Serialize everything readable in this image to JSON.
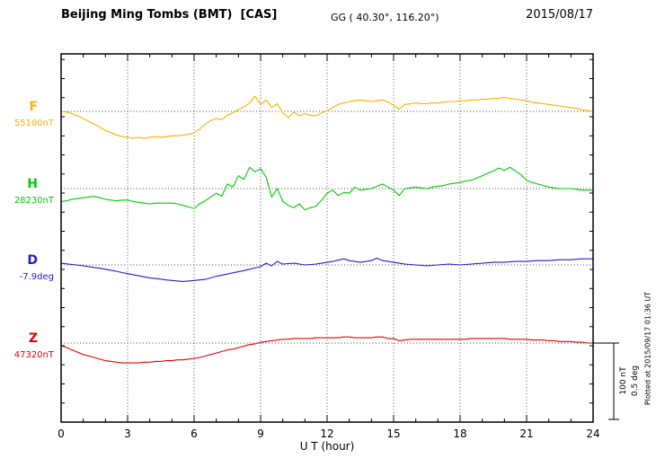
{
  "header": {
    "station_title": "Beijing Ming Tombs (BMT)  [CAS]",
    "coordinates": "GG ( 40.30°, 116.20°)",
    "date": "2015/08/17"
  },
  "footer": {
    "plotted_at": "Plotted at 2015/09/17 01:36 UT"
  },
  "scale_bar": {
    "nT_label": "100 nT",
    "deg_label": "0.5 deg"
  },
  "chart_data": {
    "type": "line",
    "title": "Beijing Ming Tombs (BMT) [CAS]",
    "xlabel": "U T (hour)",
    "x_range": [
      0,
      24
    ],
    "x_ticks": [
      0,
      3,
      6,
      9,
      12,
      15,
      18,
      21,
      24
    ],
    "grid": "dotted vertical lines every 3 hours; dotted horizontal baseline per trace",
    "scale": {
      "nT_per_division": 100,
      "deg_per_division": 0.5
    },
    "series": [
      {
        "name": "F",
        "unit": "nT",
        "baseline": 55100,
        "baseline_label": "55100nT",
        "color": "#FFB000",
        "x_step_hours": 0.25,
        "values": [
          0,
          -1,
          -3,
          -6,
          -9,
          -13,
          -17,
          -21,
          -25,
          -28,
          -31,
          -33,
          -34,
          -35,
          -34,
          -35,
          -34,
          -33,
          -34,
          -33,
          -32,
          -32,
          -31,
          -30,
          -28,
          -23,
          -17,
          -12,
          -9,
          -11,
          -5,
          -2,
          2,
          6,
          11,
          20,
          9,
          15,
          5,
          10,
          -2,
          -8,
          -1,
          -6,
          -3,
          -5,
          -6,
          -2,
          1,
          5,
          9,
          11,
          13,
          14,
          15,
          14,
          13,
          14,
          15,
          12,
          8,
          3,
          9,
          10,
          11,
          10,
          10,
          11,
          11,
          12,
          13,
          13,
          14,
          14,
          15,
          15,
          16,
          16,
          17,
          17,
          18,
          17,
          16,
          15,
          14,
          12,
          11,
          10,
          9,
          8,
          7,
          6,
          5,
          4,
          2,
          1,
          0
        ]
      },
      {
        "name": "H",
        "unit": "nT",
        "baseline": 28230,
        "baseline_label": "28230nT",
        "color": "#00CC00",
        "x_step_hours": 0.25,
        "values": [
          -17,
          -16,
          -14,
          -13,
          -12,
          -11,
          -10,
          -12,
          -14,
          -15,
          -16,
          -15,
          -15,
          -17,
          -18,
          -19,
          -20,
          -19,
          -19,
          -19,
          -19,
          -20,
          -22,
          -24,
          -26,
          -20,
          -16,
          -11,
          -6,
          -10,
          6,
          2,
          17,
          12,
          28,
          22,
          26,
          15,
          -11,
          0,
          -17,
          -22,
          -25,
          -20,
          -28,
          -25,
          -23,
          -15,
          -6,
          -2,
          -9,
          -5,
          -6,
          2,
          -2,
          -1,
          0,
          3,
          6,
          2,
          -2,
          -9,
          0,
          1,
          2,
          1,
          0,
          2,
          3,
          4,
          6,
          7,
          8,
          10,
          11,
          14,
          17,
          20,
          23,
          27,
          24,
          28,
          23,
          18,
          11,
          8,
          6,
          4,
          2,
          1,
          0,
          0,
          0,
          -1,
          -2,
          -2,
          -2
        ]
      },
      {
        "name": "D",
        "unit": "deg",
        "baseline": -7.9,
        "baseline_label": "-7.9deg",
        "color": "#2020D0",
        "x_step_hours": 0.25,
        "values": [
          0.011,
          0.007,
          0.003,
          -0.001,
          -0.006,
          -0.011,
          -0.017,
          -0.022,
          -0.028,
          -0.035,
          -0.042,
          -0.05,
          -0.057,
          -0.064,
          -0.071,
          -0.078,
          -0.085,
          -0.089,
          -0.093,
          -0.098,
          -0.102,
          -0.105,
          -0.108,
          -0.105,
          -0.102,
          -0.098,
          -0.095,
          -0.085,
          -0.074,
          -0.067,
          -0.06,
          -0.052,
          -0.045,
          -0.037,
          -0.028,
          -0.02,
          -0.011,
          0.011,
          -0.006,
          0.023,
          0.006,
          0.009,
          0.011,
          0.006,
          0.0,
          0.003,
          0.006,
          0.011,
          0.017,
          0.023,
          0.031,
          0.04,
          0.028,
          0.023,
          0.017,
          0.023,
          0.028,
          0.045,
          0.028,
          0.023,
          0.017,
          0.011,
          0.006,
          0.003,
          0.0,
          -0.003,
          -0.006,
          -0.003,
          0.0,
          0.003,
          0.006,
          0.003,
          0.0,
          0.003,
          0.006,
          0.009,
          0.011,
          0.014,
          0.017,
          0.017,
          0.017,
          0.02,
          0.023,
          0.023,
          0.023,
          0.026,
          0.028,
          0.028,
          0.028,
          0.031,
          0.034,
          0.034,
          0.034,
          0.037,
          0.04,
          0.04,
          0.04
        ]
      },
      {
        "name": "Z",
        "unit": "nT",
        "baseline": 47320,
        "baseline_label": "47320nT",
        "color": "#E60000",
        "x_step_hours": 0.25,
        "values": [
          -3,
          -6,
          -9,
          -12,
          -15,
          -17,
          -19,
          -21,
          -23,
          -24,
          -25,
          -26,
          -26,
          -26,
          -26,
          -25,
          -25,
          -24,
          -24,
          -23,
          -23,
          -22,
          -22,
          -21,
          -20,
          -19,
          -17,
          -15,
          -13,
          -11,
          -9,
          -8,
          -6,
          -4,
          -2,
          -1,
          1,
          2,
          3,
          4,
          5,
          5,
          6,
          6,
          6,
          6,
          7,
          7,
          7,
          7,
          7,
          8,
          8,
          7,
          7,
          7,
          7,
          8,
          8,
          6,
          6,
          3,
          4,
          5,
          5,
          5,
          5,
          5,
          5,
          5,
          5,
          5,
          5,
          5,
          6,
          6,
          6,
          6,
          6,
          6,
          6,
          5,
          5,
          5,
          5,
          4,
          4,
          4,
          3,
          3,
          2,
          2,
          2,
          1,
          1,
          0,
          0
        ]
      }
    ]
  }
}
